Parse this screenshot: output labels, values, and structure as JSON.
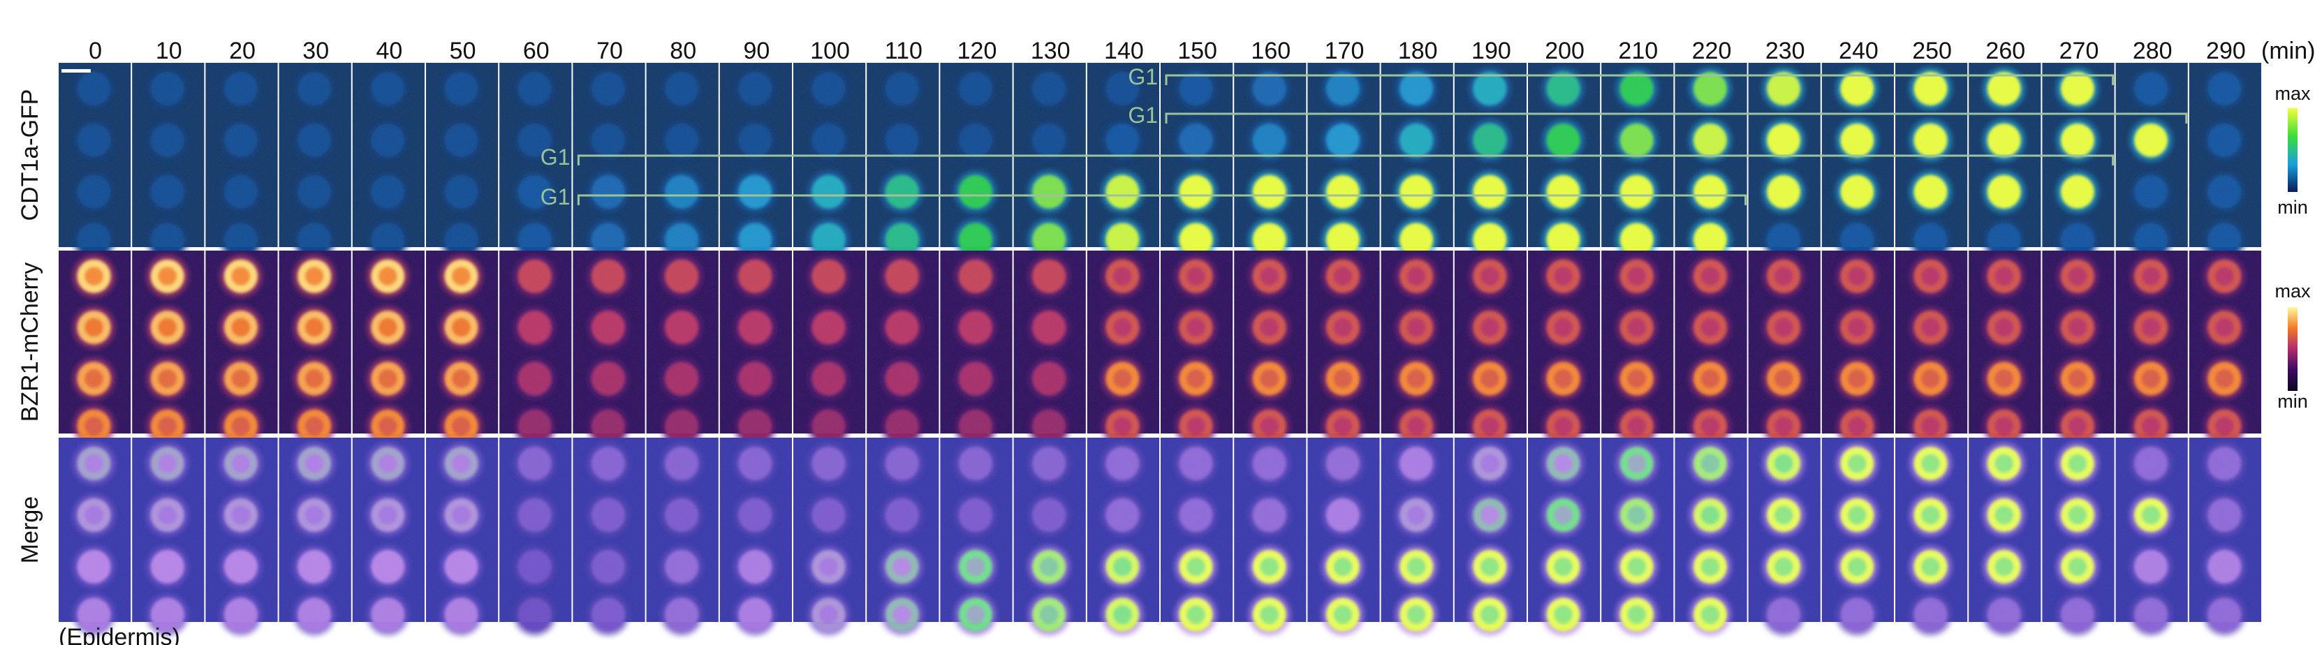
{
  "time_unit": "(min)",
  "timepoints": [
    "0",
    "10",
    "20",
    "30",
    "40",
    "50",
    "60",
    "70",
    "80",
    "90",
    "100",
    "110",
    "120",
    "130",
    "140",
    "150",
    "160",
    "170",
    "180",
    "190",
    "200",
    "210",
    "220",
    "230",
    "240",
    "250",
    "260",
    "270",
    "280",
    "290"
  ],
  "rows": [
    {
      "label": "CDT1a-GFP",
      "colormap": "gfp-lut"
    },
    {
      "label": "BZR1-mCherry",
      "colormap": "inferno-lut"
    },
    {
      "label": "Merge",
      "colormap": "merge"
    }
  ],
  "colorbars": [
    {
      "max_label": "max",
      "min_label": "min",
      "colors": [
        "#f4ff3c",
        "#3cdc3c",
        "#1aa0dc",
        "#0a1a5a"
      ]
    },
    {
      "max_label": "max",
      "min_label": "min",
      "colors": [
        "#fffaa0",
        "#f07a28",
        "#b02c6e",
        "#3a0a62",
        "#0a0620"
      ]
    }
  ],
  "g1_label": "G1",
  "g1_brackets": [
    {
      "label": "G1",
      "start": "150",
      "end": "280"
    },
    {
      "label": "G1",
      "start": "150",
      "end": "290"
    },
    {
      "label": "G1",
      "start": "70",
      "end": "280"
    },
    {
      "label": "G1",
      "start": "70",
      "end": "230"
    }
  ],
  "tissue_label": "(Epidermis)"
}
